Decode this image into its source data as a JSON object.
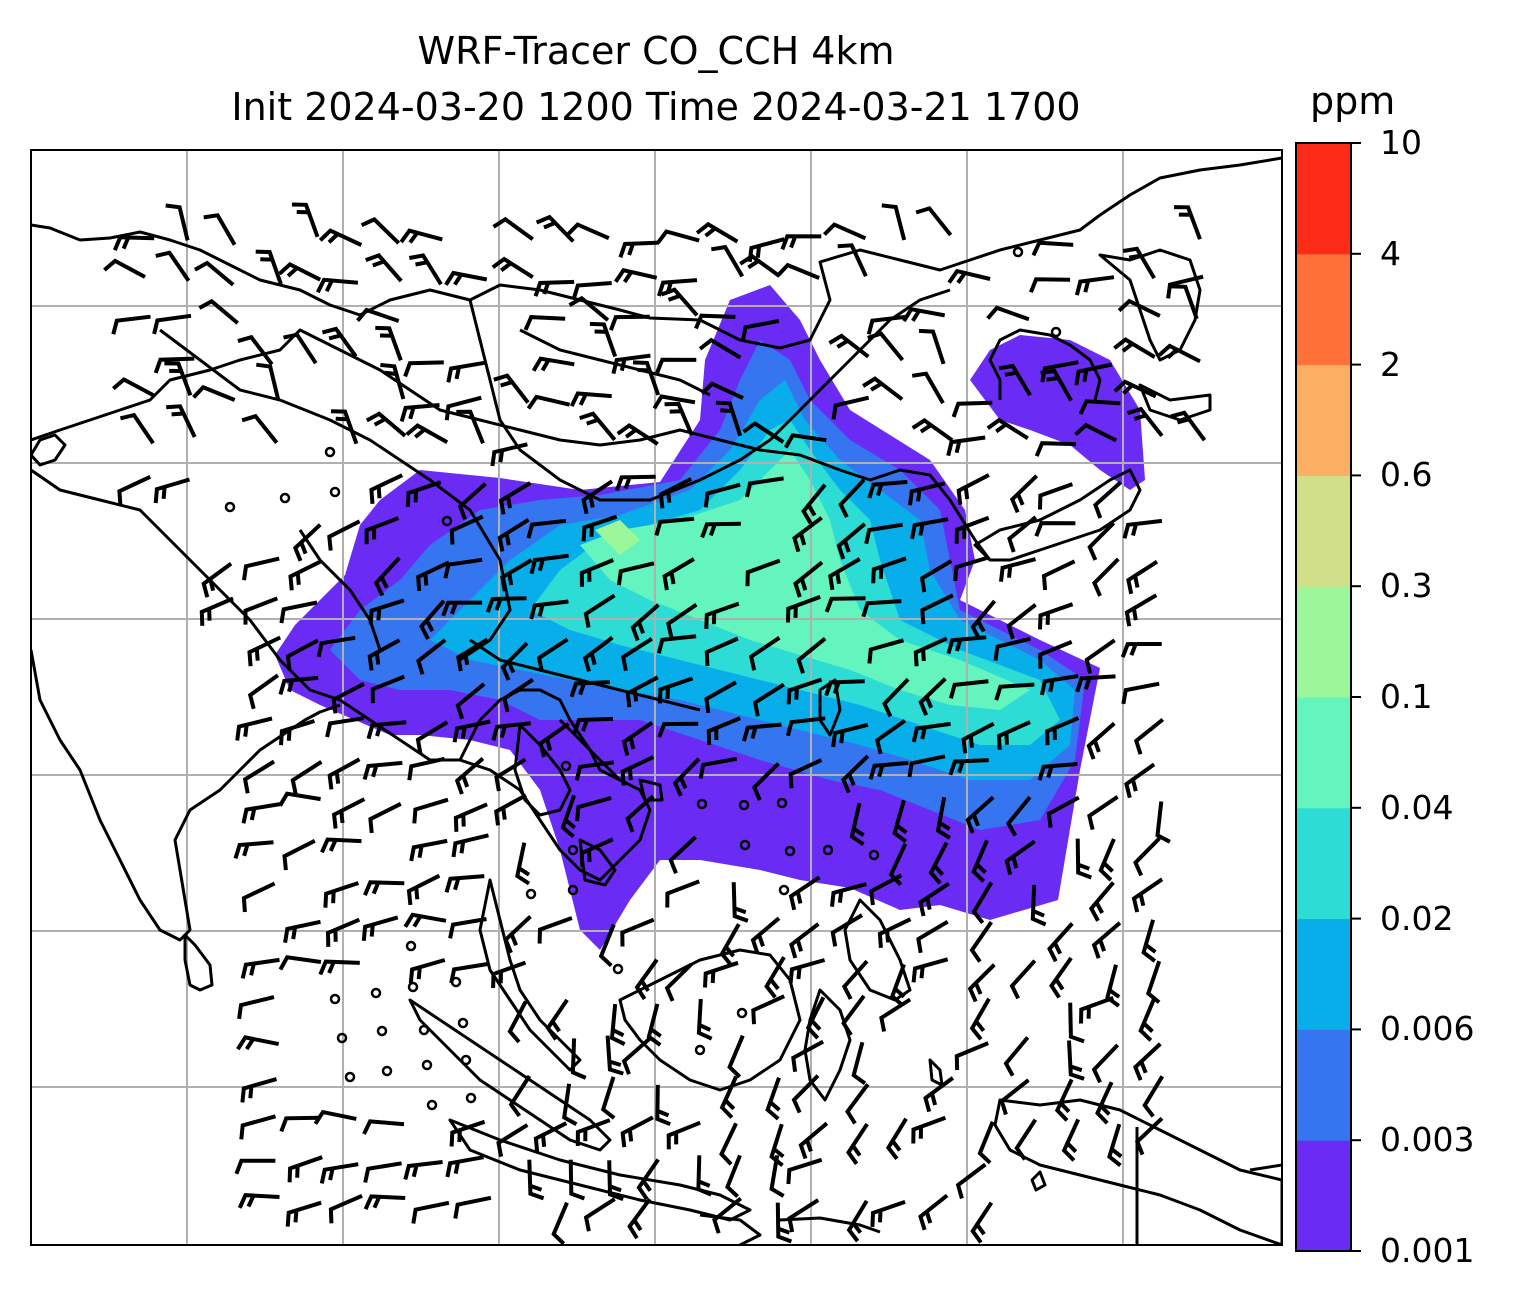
{
  "title": {
    "line1": "WRF-Tracer CO_CCH 4km",
    "line2": "Init 2024-03-20 1200 Time 2024-03-21 1700"
  },
  "colorbar": {
    "unit": "ppm",
    "levels": [
      "0.001",
      "0.003",
      "0.006",
      "0.02",
      "0.04",
      "0.1",
      "0.3",
      "0.6",
      "2",
      "4",
      "10"
    ],
    "colors": [
      "#6a2cf5",
      "#3575f0",
      "#07aeea",
      "#2ddcd4",
      "#64f4be",
      "#9cf69a",
      "#d1e088",
      "#fcae62",
      "#ff7138",
      "#fd2b18"
    ]
  },
  "map": {
    "coastline_color": "#000000",
    "gridline_color": "#b0b0b0",
    "wind_barbs": "shown"
  }
}
